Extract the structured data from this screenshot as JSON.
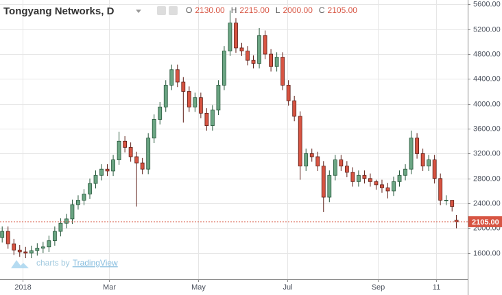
{
  "chart_data": {
    "type": "candlestick",
    "title": "Tongyang Networks, D",
    "ohlc_legend": [
      {
        "key": "O",
        "value": "2130.00"
      },
      {
        "key": "H",
        "value": "2215.00"
      },
      {
        "key": "L",
        "value": "2000.00"
      },
      {
        "key": "C",
        "value": "2105.00"
      }
    ],
    "watermark": {
      "prefix": "charts by",
      "brand": "TradingView"
    },
    "x": [
      -14,
      -10,
      -6,
      -2,
      2,
      6,
      10,
      14,
      18,
      22,
      26,
      30,
      34,
      38,
      42,
      46,
      50,
      54,
      58,
      62,
      66,
      70,
      74,
      78,
      82,
      86,
      90,
      94,
      98,
      102,
      106,
      110,
      114,
      118,
      122,
      126,
      130,
      134,
      138,
      142,
      146,
      150,
      154,
      158,
      162,
      166,
      170,
      174,
      178,
      182,
      186,
      190,
      194,
      198,
      202,
      206,
      210,
      214,
      218,
      222,
      226,
      230,
      234,
      238,
      242,
      246,
      250,
      254,
      258,
      262,
      266,
      270,
      274,
      278,
      282,
      286,
      290,
      294,
      297
    ],
    "open": [
      1850,
      1950,
      1750,
      1650,
      1620,
      1600,
      1640,
      1680,
      1700,
      1800,
      1950,
      2080,
      2150,
      2380,
      2450,
      2550,
      2720,
      2850,
      2950,
      2920,
      3100,
      3400,
      3300,
      3150,
      3050,
      2950,
      3450,
      3750,
      3950,
      4300,
      4550,
      4350,
      4200,
      3950,
      4100,
      3850,
      3650,
      3900,
      4300,
      4850,
      5300,
      4900,
      4850,
      4700,
      4650,
      5100,
      4800,
      4600,
      4750,
      4300,
      4050,
      3800,
      3000,
      3200,
      3150,
      3000,
      2500,
      2850,
      3100,
      3000,
      2900,
      2750,
      2850,
      2800,
      2750,
      2700,
      2650,
      2600,
      2750,
      2850,
      2950,
      3450,
      3200,
      3000,
      3100,
      2800,
      2450,
      2450,
      2130
    ],
    "high": [
      2030,
      2030,
      1830,
      1730,
      1700,
      1720,
      1760,
      1780,
      1880,
      2030,
      2160,
      2230,
      2460,
      2530,
      2630,
      2800,
      2930,
      3030,
      3030,
      3180,
      3550,
      3480,
      3380,
      3230,
      3130,
      3530,
      3830,
      4030,
      4380,
      4630,
      4630,
      4430,
      4280,
      4180,
      4180,
      3930,
      3980,
      4380,
      4930,
      5500,
      5380,
      4980,
      4930,
      4780,
      5220,
      5180,
      4880,
      4830,
      4830,
      4380,
      4130,
      3880,
      3280,
      3280,
      3230,
      3080,
      2930,
      3180,
      3180,
      3080,
      2980,
      2930,
      2930,
      2880,
      2780,
      2780,
      2730,
      2830,
      2930,
      3030,
      3570,
      3530,
      3280,
      3180,
      3180,
      2880,
      2530,
      2430,
      2215
    ],
    "low": [
      1770,
      1670,
      1570,
      1540,
      1520,
      1520,
      1560,
      1600,
      1620,
      1720,
      1870,
      2000,
      2070,
      2300,
      2370,
      2470,
      2640,
      2770,
      2840,
      2840,
      3020,
      3220,
      3070,
      2350,
      2870,
      2870,
      3370,
      3670,
      3870,
      4220,
      4270,
      3700,
      3870,
      3870,
      3770,
      3570,
      3570,
      3820,
      4220,
      4770,
      4820,
      4770,
      4620,
      4570,
      4570,
      4720,
      4520,
      4520,
      4220,
      3970,
      3720,
      2780,
      2920,
      3070,
      2920,
      2260,
      2420,
      2770,
      2920,
      2820,
      2670,
      2670,
      2720,
      2670,
      2620,
      2570,
      2480,
      2520,
      2670,
      2770,
      2870,
      3120,
      2920,
      2920,
      2720,
      2370,
      2370,
      2270,
      2000
    ],
    "close": [
      1950,
      1750,
      1650,
      1620,
      1600,
      1640,
      1680,
      1700,
      1800,
      1950,
      2080,
      2150,
      2380,
      2450,
      2550,
      2720,
      2850,
      2950,
      2920,
      3100,
      3400,
      3300,
      3150,
      3050,
      2950,
      3450,
      3750,
      3950,
      4300,
      4550,
      4350,
      4200,
      3950,
      4100,
      3850,
      3650,
      3900,
      4300,
      4850,
      5300,
      4900,
      4850,
      4700,
      4650,
      5100,
      4800,
      4600,
      4750,
      4300,
      4050,
      3800,
      3000,
      3200,
      3150,
      3000,
      2500,
      2850,
      3100,
      3000,
      2900,
      2750,
      2850,
      2800,
      2750,
      2700,
      2650,
      2600,
      2750,
      2850,
      2950,
      3450,
      3200,
      3000,
      3100,
      2800,
      2450,
      2450,
      2350,
      2105
    ],
    "up_color": "#6ba583",
    "down_color": "#d75442",
    "last_price": {
      "value": 2105,
      "label": "2105.00"
    },
    "xlim": [
      -15.5,
      304.7
    ],
    "ylim": [
      1180,
      5670
    ],
    "xticks": [
      {
        "value": 0,
        "label": "2018"
      },
      {
        "value": 59,
        "label": "Mar"
      },
      {
        "value": 120,
        "label": "May"
      },
      {
        "value": 181,
        "label": "Jul"
      },
      {
        "value": 243,
        "label": "Sep"
      },
      {
        "value": 283,
        "label": "11"
      }
    ],
    "yticks": [
      {
        "value": 1600,
        "label": "1600.00"
      },
      {
        "value": 2000,
        "label": "2000.00"
      },
      {
        "value": 2400,
        "label": "2400.00"
      },
      {
        "value": 2800,
        "label": "2800.00"
      },
      {
        "value": 3200,
        "label": "3200.00"
      },
      {
        "value": 3600,
        "label": "3600.00"
      },
      {
        "value": 4000,
        "label": "4000.00"
      },
      {
        "value": 4400,
        "label": "4400.00"
      },
      {
        "value": 4800,
        "label": "4800.00"
      },
      {
        "value": 5200,
        "label": "5200.00"
      },
      {
        "value": 5600,
        "label": "5600.00"
      }
    ],
    "grid": true
  }
}
